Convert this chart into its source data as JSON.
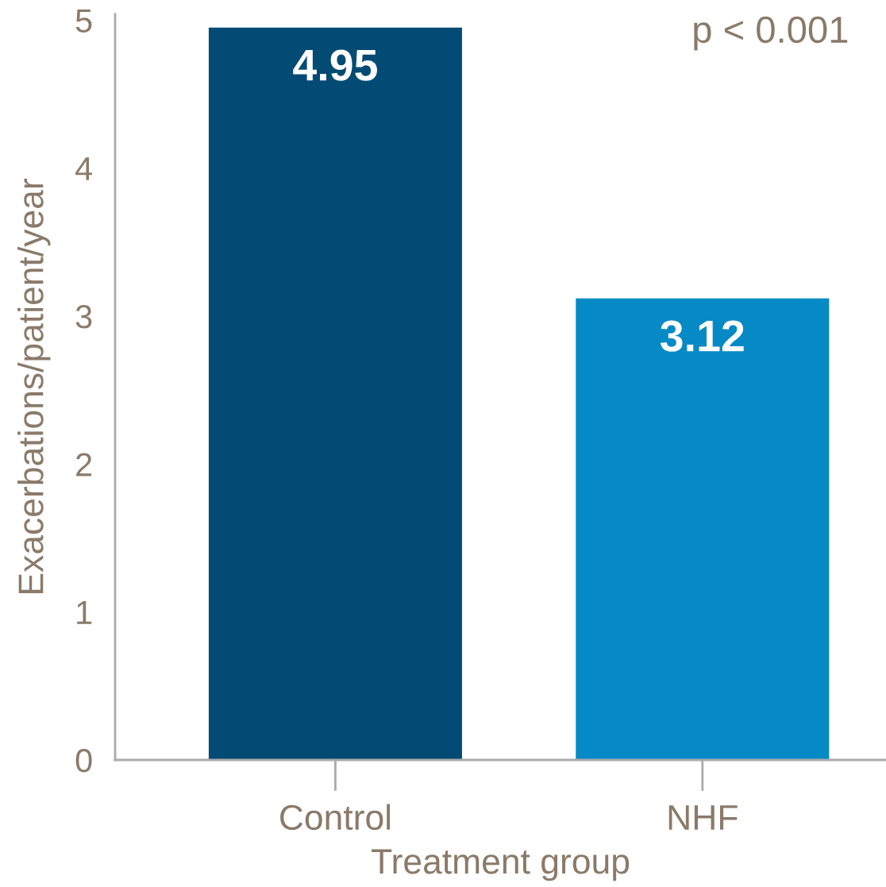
{
  "chart_data": {
    "type": "bar",
    "xlabel": "Treatment group",
    "ylabel": "Exacerbations/patient/year",
    "categories": [
      "Control",
      "NHF"
    ],
    "values": [
      4.95,
      3.12
    ],
    "colors": [
      "#034b74",
      "#068ac6"
    ],
    "ylim": [
      0,
      5.04
    ],
    "yticks": [
      0,
      1,
      2,
      3,
      4,
      5
    ],
    "data_labels": true,
    "grid": false,
    "legend": false,
    "annotations": [
      "p < 0.001"
    ]
  }
}
